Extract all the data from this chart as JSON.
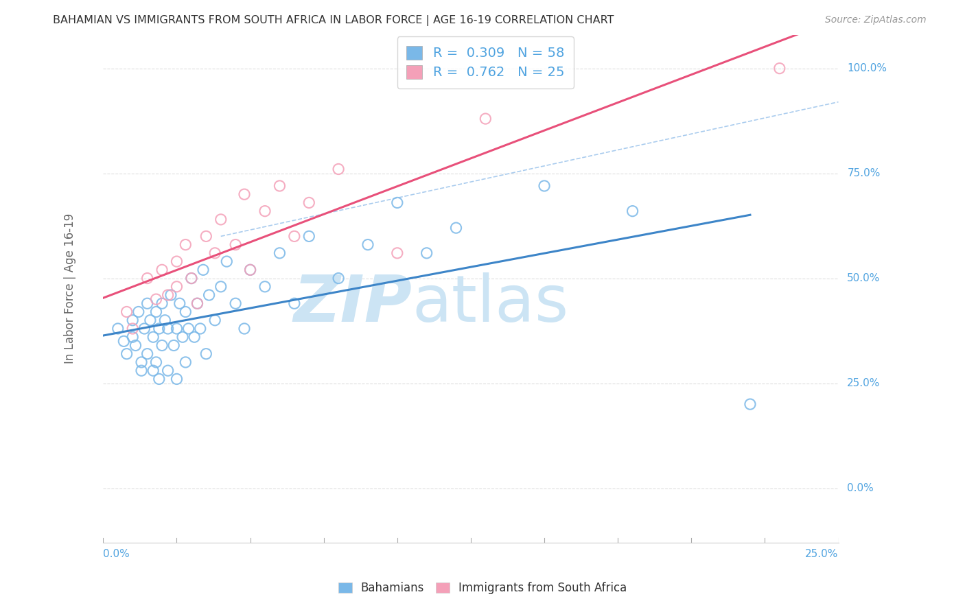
{
  "title": "BAHAMIAN VS IMMIGRANTS FROM SOUTH AFRICA IN LABOR FORCE | AGE 16-19 CORRELATION CHART",
  "source": "Source: ZipAtlas.com",
  "ylabel": "In Labor Force | Age 16-19",
  "legend_label1": "Bahamians",
  "legend_label2": "Immigrants from South Africa",
  "R1": 0.309,
  "N1": 58,
  "R2": 0.762,
  "N2": 25,
  "xlim": [
    0.0,
    0.25
  ],
  "ylim": [
    -0.13,
    1.08
  ],
  "yticks": [
    0.0,
    0.25,
    0.5,
    0.75,
    1.0
  ],
  "ytick_labels": [
    "0.0%",
    "25.0%",
    "50.0%",
    "75.0%",
    "100.0%"
  ],
  "color_blue": "#7ab8e8",
  "color_pink": "#f4a0b8",
  "line_blue": "#3d85c8",
  "line_pink": "#e8507a",
  "ref_line_color": "#aaccee",
  "watermark_color": "#cce4f4",
  "bg_color": "#ffffff",
  "grid_color": "#dddddd",
  "blue_x": [
    0.005,
    0.007,
    0.008,
    0.01,
    0.01,
    0.011,
    0.012,
    0.013,
    0.013,
    0.014,
    0.015,
    0.015,
    0.016,
    0.017,
    0.017,
    0.018,
    0.018,
    0.019,
    0.019,
    0.02,
    0.02,
    0.021,
    0.022,
    0.022,
    0.023,
    0.024,
    0.025,
    0.025,
    0.026,
    0.027,
    0.028,
    0.028,
    0.029,
    0.03,
    0.031,
    0.032,
    0.033,
    0.034,
    0.035,
    0.036,
    0.038,
    0.04,
    0.042,
    0.045,
    0.048,
    0.05,
    0.055,
    0.06,
    0.065,
    0.07,
    0.08,
    0.09,
    0.1,
    0.11,
    0.12,
    0.15,
    0.18,
    0.22
  ],
  "blue_y": [
    0.38,
    0.35,
    0.32,
    0.4,
    0.36,
    0.34,
    0.42,
    0.3,
    0.28,
    0.38,
    0.44,
    0.32,
    0.4,
    0.36,
    0.28,
    0.42,
    0.3,
    0.38,
    0.26,
    0.44,
    0.34,
    0.4,
    0.38,
    0.28,
    0.46,
    0.34,
    0.38,
    0.26,
    0.44,
    0.36,
    0.42,
    0.3,
    0.38,
    0.5,
    0.36,
    0.44,
    0.38,
    0.52,
    0.32,
    0.46,
    0.4,
    0.48,
    0.54,
    0.44,
    0.38,
    0.52,
    0.48,
    0.56,
    0.44,
    0.6,
    0.5,
    0.58,
    0.68,
    0.56,
    0.62,
    0.72,
    0.66,
    0.2
  ],
  "pink_x": [
    0.008,
    0.01,
    0.015,
    0.018,
    0.02,
    0.022,
    0.025,
    0.025,
    0.028,
    0.03,
    0.032,
    0.035,
    0.038,
    0.04,
    0.045,
    0.048,
    0.05,
    0.055,
    0.06,
    0.065,
    0.07,
    0.08,
    0.1,
    0.13,
    0.23
  ],
  "pink_y": [
    0.42,
    0.38,
    0.5,
    0.45,
    0.52,
    0.46,
    0.48,
    0.54,
    0.58,
    0.5,
    0.44,
    0.6,
    0.56,
    0.64,
    0.58,
    0.7,
    0.52,
    0.66,
    0.72,
    0.6,
    0.68,
    0.76,
    0.56,
    0.88,
    1.0
  ],
  "blue_line_x": [
    0.0,
    0.22
  ],
  "blue_line_y": [
    0.33,
    0.665
  ],
  "pink_line_x": [
    0.0,
    0.25
  ],
  "pink_line_y": [
    0.3,
    1.02
  ],
  "ref_line_x": [
    0.04,
    0.25
  ],
  "ref_line_y": [
    0.6,
    0.92
  ]
}
